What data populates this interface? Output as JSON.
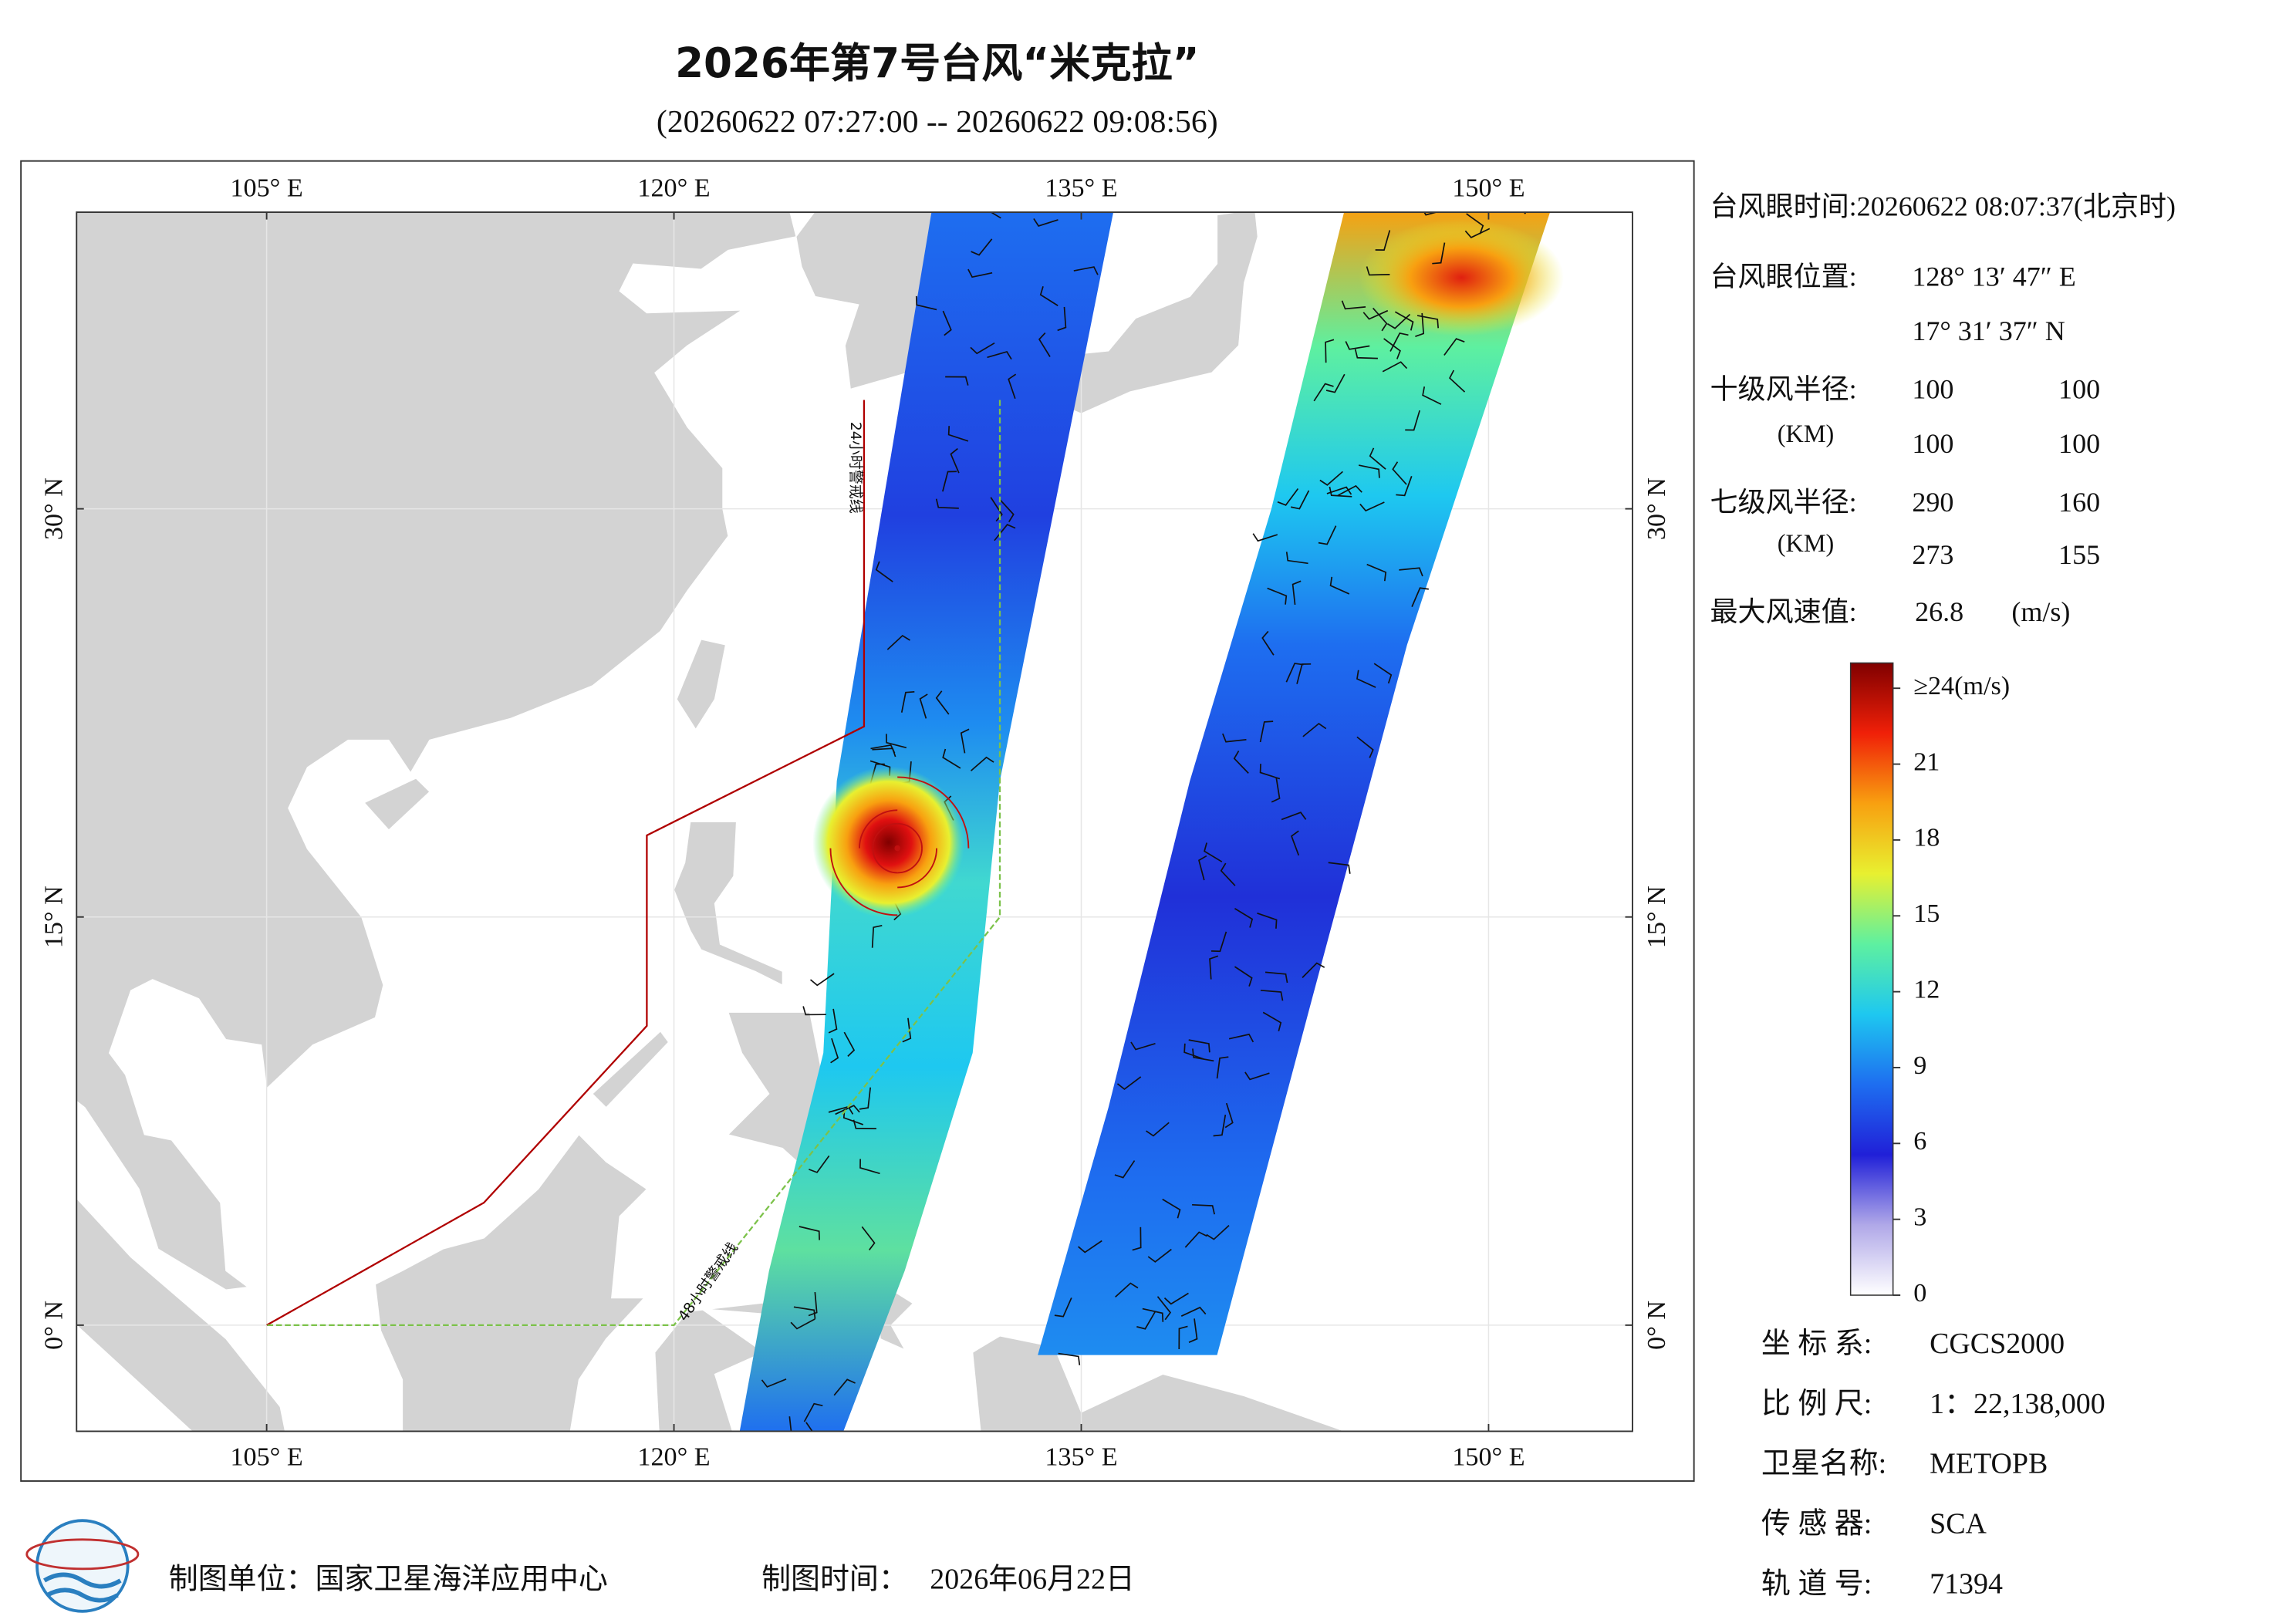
{
  "title": "2026年第7号台风“米克拉”",
  "subtitle": "(20260622 07:27:00 -- 20260622 09:08:56)",
  "map": {
    "xlim": [
      98,
      155.3
    ],
    "ylim": [
      -3.9,
      40.9
    ],
    "xticks": [
      {
        "value": 105,
        "label": "105° E"
      },
      {
        "value": 120,
        "label": "120° E"
      },
      {
        "value": 135,
        "label": "135° E"
      },
      {
        "value": 150,
        "label": "150° E"
      }
    ],
    "yticks": [
      {
        "value": 0,
        "label": "0° N"
      },
      {
        "value": 15,
        "label": "15° N"
      },
      {
        "value": 30,
        "label": "30° N"
      }
    ],
    "warning_lines": [
      {
        "label": "24小时警戒线",
        "color": "#b00000"
      },
      {
        "label": "48小时警戒线",
        "color": "#7cc24a"
      }
    ]
  },
  "info": {
    "eye_time": "台风眼时间:20260622 08:07:37(北京时)",
    "eye_position": {
      "label": "台风眼位置:",
      "lon": "128° 13′ 47″ E",
      "lat": "17° 31′ 37″ N"
    },
    "r10": {
      "label": "十级风半径:",
      "unit": "(KM)",
      "values": [
        100,
        100,
        100,
        100
      ]
    },
    "r7": {
      "label": "七级风半径:",
      "unit": "(KM)",
      "values": [
        290,
        160,
        273,
        155
      ]
    },
    "max_wind": {
      "label": "最大风速值:",
      "value": 26.8,
      "unit": "(m/s)"
    }
  },
  "colorbar": {
    "lim": [
      0,
      25
    ],
    "ticks": [
      0,
      3,
      6,
      9,
      12,
      15,
      18,
      21,
      {
        "value": 24,
        "label": "≥24(m/s)"
      }
    ],
    "colors": [
      "#ffffff",
      "#b0a8e8",
      "#2020d8",
      "#1e6ef0",
      "#1ec8f0",
      "#5ef0a0",
      "#e8f030",
      "#f8a010",
      "#f02008",
      "#800000"
    ]
  },
  "meta": [
    {
      "label": "坐 标 系:",
      "value": "CGCS2000"
    },
    {
      "label": "比 例 尺:",
      "value": "1：22,138,000"
    },
    {
      "label": "卫星名称:",
      "value": "METOPB"
    },
    {
      "label": "传 感 器:",
      "value": "SCA"
    },
    {
      "label": "轨 道 号:",
      "value": "71394"
    }
  ],
  "footer": {
    "unit": "制图单位：国家卫星海洋应用中心",
    "time_label": "制图时间：",
    "date": "2026年06月22日"
  }
}
